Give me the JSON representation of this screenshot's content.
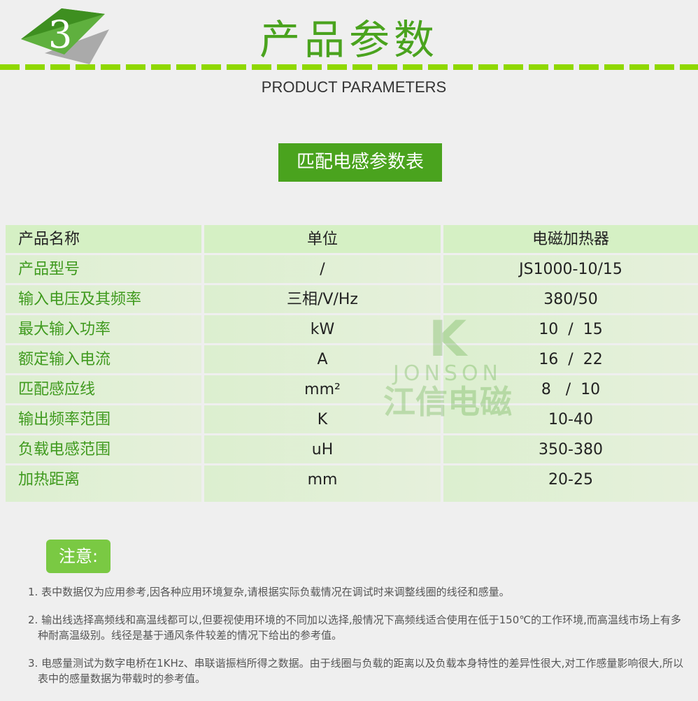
{
  "header": {
    "badge_number": "3",
    "title": "产品参数",
    "subtitle": "PRODUCT PARAMETERS"
  },
  "table_title": "匹配电感参数表",
  "table": {
    "headers": [
      "产品名称",
      "单位",
      "电磁加热器"
    ],
    "rows": [
      [
        "产品型号",
        "/",
        "JS1000-10/15"
      ],
      [
        "输入电压及其频率",
        "三相/V/Hz",
        "380/50"
      ],
      [
        "最大输入功率",
        "kW",
        "10  /  15"
      ],
      [
        "额定输入电流",
        "A",
        "16  /  22"
      ],
      [
        "匹配感应线",
        "mm²",
        "8   /  10"
      ],
      [
        "输出频率范围",
        "K",
        "10-40"
      ],
      [
        "负载电感范围",
        "uH",
        "350-380"
      ],
      [
        "加热距离",
        "mm",
        "20-25"
      ]
    ]
  },
  "watermark": {
    "en": "JONSON",
    "cn": "江信电磁"
  },
  "notice": {
    "label": "注意:",
    "items": [
      "1. 表中数据仅为应用参考,因各种应用环境复杂,请根据实际负载情况在调试时来调整线圈的线径和感量。",
      "2. 输出线选择高频线和高温线都可以,但要视使用环境的不同加以选择,般情况下高频线适合使用在低于150℃的工作环境,而高温线市场上有多种耐高温级别。线径是基于通风条件较差的情况下给出的参考值。",
      "3. 电感量测试为数字电桥在1KHz、串联谐振档所得之数据。由于线圈与负载的距离以及负载本身特性的差异性很大,对工作感量影响很大,所以表中的感量数据为带载时的参考值。"
    ]
  },
  "colors": {
    "brand_green": "#4aa31e",
    "dash_green": "#8fd800",
    "row_bg": "#dcefcf"
  }
}
